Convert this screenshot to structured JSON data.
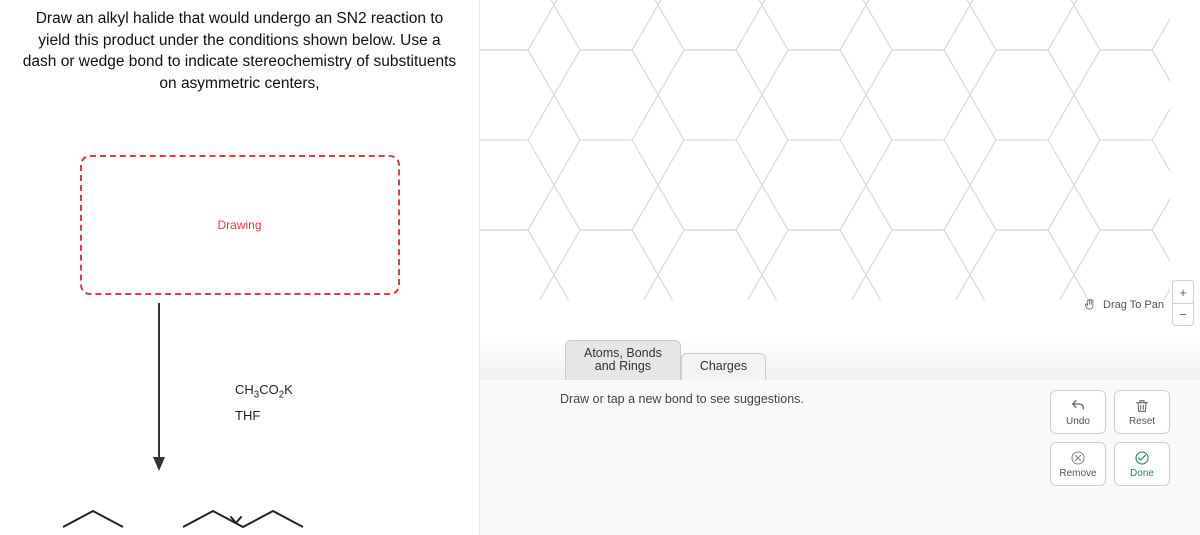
{
  "question": {
    "text": "Draw an alkyl halide that would undergo an SN2 reaction to yield this product under the conditions shown below. Use a dash or wedge bond to indicate stereochemistry of substituents on asymmetric centers,"
  },
  "drawing_box": {
    "label": "Drawing"
  },
  "reagents": {
    "line1_html": "CH<sub>3</sub>CO<sub>2</sub>K",
    "line2": "THF"
  },
  "canvas": {
    "hex_stroke": "#d9d9d9",
    "drag_label": "Drag To Pan",
    "zoom_in": "+",
    "zoom_out": "−"
  },
  "tabs": {
    "atoms": "Atoms, Bonds\nand Rings",
    "charges": "Charges"
  },
  "toolbar": {
    "hint": "Draw or tap a new bond to see suggestions."
  },
  "actions": {
    "undo": "Undo",
    "reset": "Reset",
    "remove": "Remove",
    "done": "Done"
  },
  "colors": {
    "accent_red": "#e63946",
    "done_green": "#1a8a5a"
  }
}
